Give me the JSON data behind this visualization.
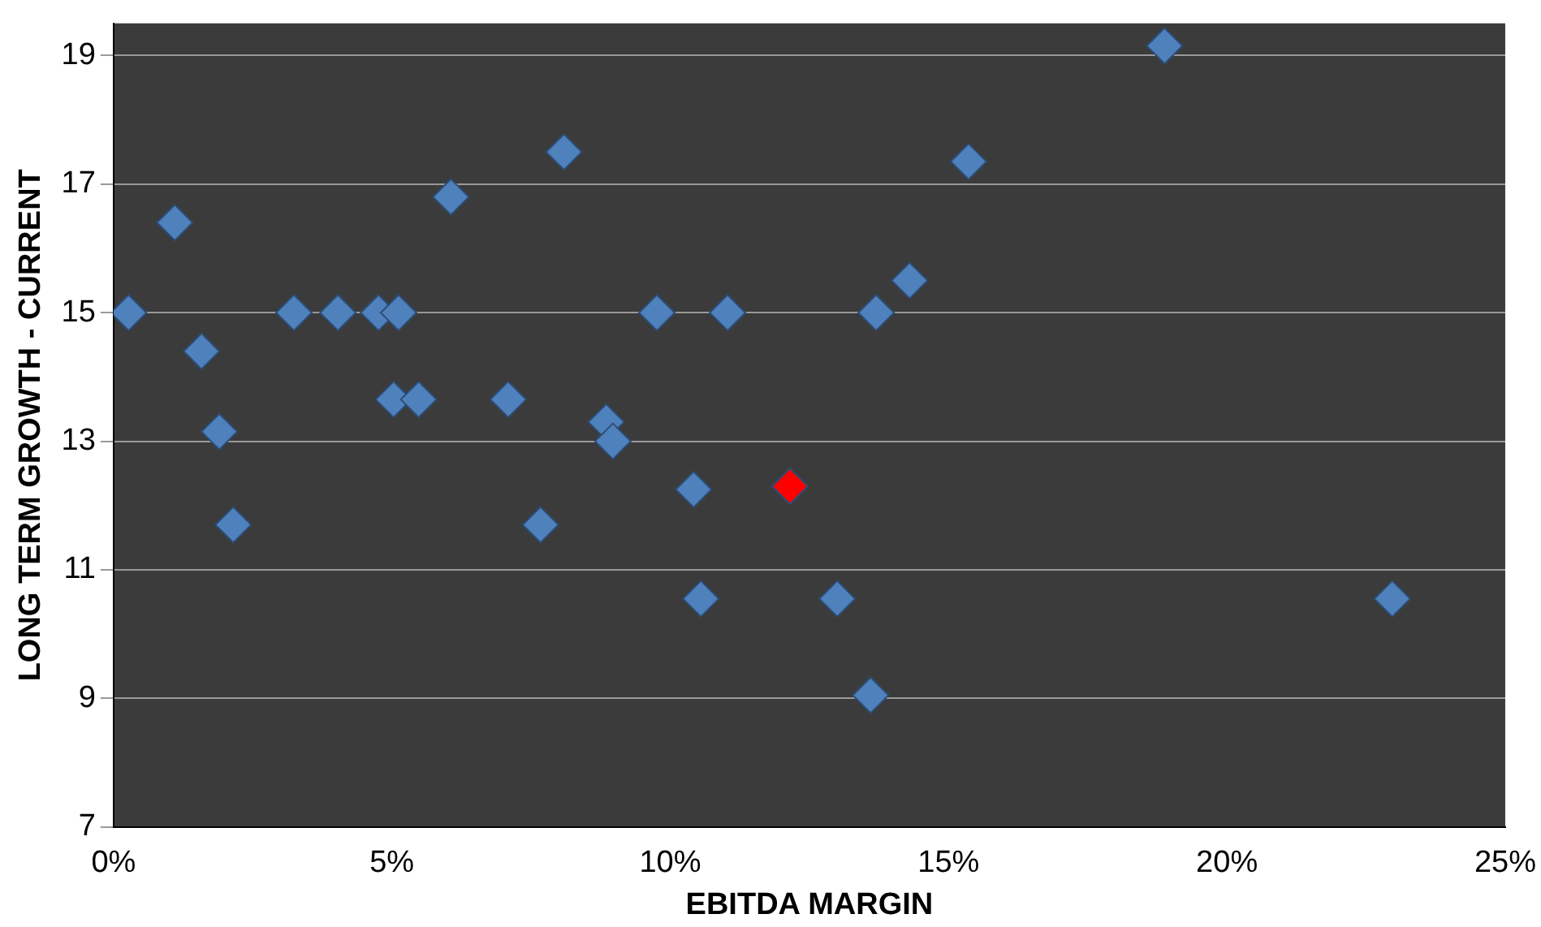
{
  "chart_data": {
    "type": "scatter",
    "xlabel": "EBITDA MARGIN",
    "ylabel": "LONG TERM GROWTH - CURRENT",
    "x": [
      0.27,
      1.1,
      1.58,
      1.9,
      2.15,
      3.24,
      4.03,
      4.76,
      5.12,
      5.03,
      5.48,
      6.06,
      7.09,
      8.09,
      7.67,
      8.85,
      8.97,
      9.76,
      10.42,
      10.55,
      11.03,
      12.15,
      13.0,
      13.7,
      13.6,
      14.3,
      15.36,
      18.88,
      22.97
    ],
    "values": [
      15.0,
      16.4,
      14.4,
      13.15,
      11.7,
      15.0,
      15.0,
      15.0,
      15.0,
      13.65,
      13.65,
      16.8,
      13.65,
      17.5,
      11.7,
      13.3,
      13.0,
      15.0,
      12.25,
      10.55,
      15.0,
      12.3,
      10.55,
      15.0,
      9.05,
      15.5,
      17.35,
      19.15,
      10.55
    ],
    "colors": [
      "#4f81bd",
      "#4f81bd",
      "#4f81bd",
      "#4f81bd",
      "#4f81bd",
      "#4f81bd",
      "#4f81bd",
      "#4f81bd",
      "#4f81bd",
      "#4f81bd",
      "#4f81bd",
      "#4f81bd",
      "#4f81bd",
      "#4f81bd",
      "#4f81bd",
      "#4f81bd",
      "#4f81bd",
      "#4f81bd",
      "#4f81bd",
      "#4f81bd",
      "#4f81bd",
      "#ff0000",
      "#4f81bd",
      "#4f81bd",
      "#4f81bd",
      "#4f81bd",
      "#4f81bd",
      "#4f81bd",
      "#4f81bd"
    ],
    "xlim": [
      0,
      25
    ],
    "xticks": [
      {
        "value": 0,
        "label": "0%"
      },
      {
        "value": 5,
        "label": "5%"
      },
      {
        "value": 10,
        "label": "10%"
      },
      {
        "value": 15,
        "label": "15%"
      },
      {
        "value": 20,
        "label": "20%"
      },
      {
        "value": 25,
        "label": "25%"
      }
    ],
    "ylim": [
      7,
      19.5
    ],
    "yticks": [
      7,
      9,
      11,
      13,
      15,
      17,
      19
    ],
    "grid": "y",
    "marker": "diamond",
    "legend": false
  }
}
